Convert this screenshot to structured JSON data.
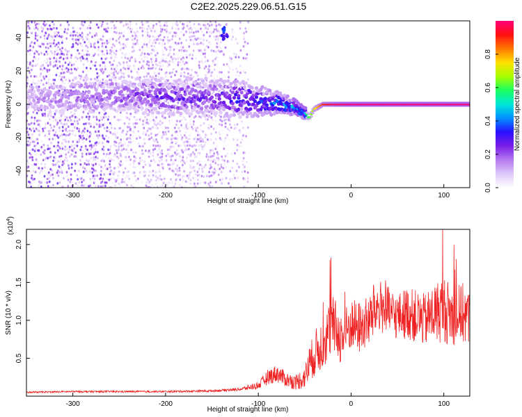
{
  "title": "C2E2.2025.229.06.51.G15",
  "chart_data": [
    {
      "type": "heatmap",
      "xlabel": "Height of straight line (km)",
      "ylabel": "Frequency (Hz)",
      "xlim": [
        -350,
        128
      ],
      "ylim": [
        -50,
        50
      ],
      "xticks": [
        -300,
        -200,
        -100,
        0,
        100
      ],
      "yticks": [
        -40,
        -20,
        0,
        20,
        40
      ],
      "colorbar": {
        "label": "Normalized spectral amplitude",
        "range": [
          0,
          1
        ],
        "ticks": [
          "0.0",
          "0.2",
          "0.4",
          "0.6",
          "0.8"
        ],
        "colormap": [
          "#ffffff",
          "#e0c8f8",
          "#b47af0",
          "#7a1ee8",
          "#2a10ff",
          "#0090ff",
          "#00e8d8",
          "#18ff60",
          "#a8ff00",
          "#ffe000",
          "#ff7800",
          "#ff1010",
          "#ff0078"
        ]
      },
      "ridge": {
        "x": [
          -350,
          -300,
          -250,
          -200,
          -150,
          -120,
          -100,
          -80,
          -60,
          -50,
          -45,
          -40,
          -30,
          -20,
          0,
          50,
          100,
          128
        ],
        "y": [
          3,
          5,
          5,
          5,
          4,
          3,
          2,
          1,
          -2,
          -5,
          -8,
          -3,
          0,
          0,
          0,
          0,
          0,
          0
        ],
        "amplitude": [
          0.15,
          0.2,
          0.25,
          0.3,
          0.3,
          0.35,
          0.4,
          0.45,
          0.5,
          0.55,
          0.6,
          0.7,
          0.9,
          0.95,
          1,
          1,
          1,
          1
        ]
      },
      "noise_extent_x": -120,
      "burst": {
        "x": -135,
        "y": 42
      }
    },
    {
      "type": "line",
      "xlabel": "Height of straight line (km)",
      "ylabel": "SNR (10 * v/v)",
      "multiplier_label": "(x10",
      "multiplier_exp": "4",
      "xlim": [
        -350,
        128
      ],
      "ylim": [
        0,
        2.2
      ],
      "xticks": [
        -300,
        -200,
        -100,
        0,
        100
      ],
      "yticks": [
        "0.5",
        "1.0",
        "1.5",
        "2.0"
      ],
      "series": [
        {
          "color": "#ee2222",
          "x": [
            -350,
            -300,
            -250,
            -200,
            -150,
            -120,
            -100,
            -90,
            -80,
            -70,
            -60,
            -50,
            -45,
            -40,
            -30,
            -20,
            -10,
            0,
            10,
            20,
            30,
            40,
            50,
            60,
            70,
            80,
            90,
            100,
            110,
            120,
            128
          ],
          "y": [
            0.05,
            0.06,
            0.06,
            0.06,
            0.07,
            0.09,
            0.14,
            0.25,
            0.3,
            0.22,
            0.18,
            0.25,
            0.4,
            0.55,
            0.7,
            0.95,
            0.75,
            0.95,
            0.9,
            1.0,
            1.2,
            1.1,
            1.05,
            1.1,
            1.05,
            1.0,
            1.1,
            1.15,
            1.05,
            1.1,
            1.0
          ],
          "spread": [
            0.01,
            0.012,
            0.012,
            0.012,
            0.015,
            0.02,
            0.05,
            0.1,
            0.12,
            0.1,
            0.1,
            0.15,
            0.25,
            0.3,
            0.35,
            0.4,
            0.35,
            0.35,
            0.35,
            0.35,
            0.35,
            0.35,
            0.3,
            0.35,
            0.35,
            0.35,
            0.4,
            0.45,
            0.4,
            0.4,
            0.4
          ]
        }
      ]
    }
  ]
}
